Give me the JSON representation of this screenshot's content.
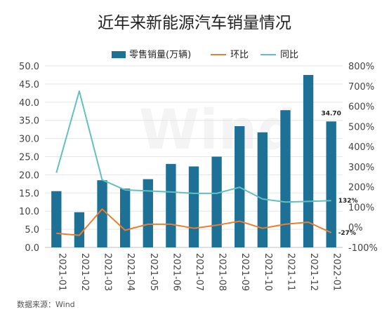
{
  "chart_data": {
    "type": "bar+line",
    "title": "近年来新能源汽车销量情况",
    "source": "数据来源：Wind",
    "watermark": "Wind",
    "categories": [
      "2021-01",
      "2021-02",
      "2021-03",
      "2021-04",
      "2021-05",
      "2021-06",
      "2021-07",
      "2021-08",
      "2021-09",
      "2021-10",
      "2021-11",
      "2021-12",
      "2022-01"
    ],
    "series": [
      {
        "name": "零售销量(万辆)",
        "type": "bar",
        "axis": "left",
        "color": "#1e7196",
        "values": [
          15.5,
          9.7,
          18.5,
          16.2,
          18.8,
          23.0,
          22.3,
          25.0,
          33.4,
          31.7,
          37.8,
          47.5,
          34.7
        ]
      },
      {
        "name": "环比",
        "type": "line",
        "axis": "right",
        "color": "#ed7d31",
        "values": [
          -30,
          -40,
          90,
          -15,
          15,
          15,
          -5,
          10,
          30,
          -5,
          15,
          25,
          -27
        ]
      },
      {
        "name": "同比",
        "type": "line",
        "axis": "right",
        "color": "#62c0bf",
        "values": [
          270,
          675,
          235,
          185,
          180,
          175,
          168,
          168,
          198,
          140,
          125,
          128,
          132
        ]
      }
    ],
    "data_labels": [
      {
        "series": 0,
        "index": 12,
        "text": "34.70"
      },
      {
        "series": 2,
        "index": 12,
        "text": "132%"
      },
      {
        "series": 1,
        "index": 12,
        "text": "-27%"
      }
    ],
    "left_axis": {
      "min": 0,
      "max": 50,
      "ticks": [
        "0.0",
        "5.0",
        "10.0",
        "15.0",
        "20.0",
        "25.0",
        "30.0",
        "35.0",
        "40.0",
        "45.0",
        "50.0"
      ]
    },
    "right_axis": {
      "min": -100,
      "max": 800,
      "ticks": [
        "-100%",
        "0%",
        "100%",
        "200%",
        "300%",
        "400%",
        "500%",
        "600%",
        "700%",
        "800%"
      ]
    },
    "legend_position": "top",
    "grid": true
  }
}
